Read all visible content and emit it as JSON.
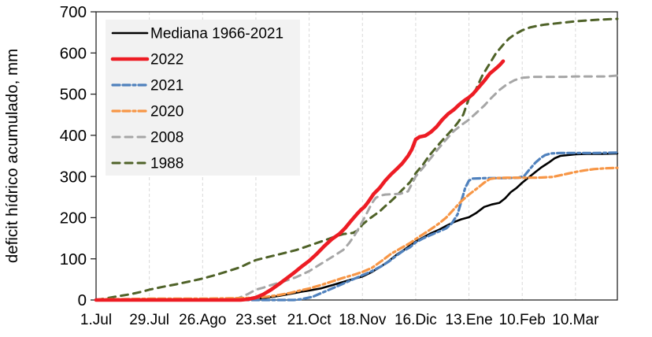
{
  "chart_data": {
    "type": "line",
    "title": "",
    "xlabel": "",
    "ylabel": "deficit hídrico acumulado, mm",
    "ylim": [
      0,
      700
    ],
    "xlim_days": [
      0,
      274
    ],
    "y_ticks": [
      0,
      100,
      200,
      300,
      400,
      500,
      600,
      700
    ],
    "x_ticks": [
      {
        "day": 0,
        "label": "1.Jul"
      },
      {
        "day": 28,
        "label": "29.Jul"
      },
      {
        "day": 56,
        "label": "26.Ago"
      },
      {
        "day": 84,
        "label": "23.set"
      },
      {
        "day": 112,
        "label": "21.Oct"
      },
      {
        "day": 140,
        "label": "18.Nov"
      },
      {
        "day": 168,
        "label": "16.Dic"
      },
      {
        "day": 196,
        "label": "13.Ene"
      },
      {
        "day": 224,
        "label": "10.Feb"
      },
      {
        "day": 252,
        "label": "10.Mar"
      }
    ],
    "grid": "vertical-dashed",
    "legend_position": "top-left",
    "colors": {
      "gridline": "#d9d9d9",
      "frame": "#262626",
      "legend_bg": "#f2f2f2"
    },
    "series": [
      {
        "name": "Mediana 1966-2021",
        "color": "#000000",
        "style": "solid",
        "width": 2.6,
        "points": [
          [
            0,
            0
          ],
          [
            56,
            0
          ],
          [
            70,
            0
          ],
          [
            78,
            1
          ],
          [
            84,
            3
          ],
          [
            90,
            6
          ],
          [
            96,
            10
          ],
          [
            102,
            15
          ],
          [
            108,
            20
          ],
          [
            112,
            23
          ],
          [
            118,
            28
          ],
          [
            124,
            36
          ],
          [
            130,
            44
          ],
          [
            136,
            52
          ],
          [
            140,
            57
          ],
          [
            145,
            68
          ],
          [
            150,
            82
          ],
          [
            154,
            95
          ],
          [
            158,
            110
          ],
          [
            162,
            122
          ],
          [
            165,
            132
          ],
          [
            168,
            142
          ],
          [
            172,
            152
          ],
          [
            176,
            162
          ],
          [
            180,
            170
          ],
          [
            184,
            180
          ],
          [
            188,
            189
          ],
          [
            192,
            196
          ],
          [
            196,
            201
          ],
          [
            200,
            212
          ],
          [
            204,
            226
          ],
          [
            208,
            232
          ],
          [
            212,
            236
          ],
          [
            215,
            247
          ],
          [
            218,
            262
          ],
          [
            221,
            272
          ],
          [
            224,
            285
          ],
          [
            228,
            300
          ],
          [
            231,
            311
          ],
          [
            234,
            322
          ],
          [
            238,
            334
          ],
          [
            241,
            344
          ],
          [
            244,
            350
          ],
          [
            248,
            352
          ],
          [
            252,
            354
          ],
          [
            258,
            355
          ],
          [
            266,
            355
          ],
          [
            274,
            356
          ]
        ]
      },
      {
        "name": "2022",
        "color": "#ed1c24",
        "style": "solid",
        "width": 4.6,
        "points": [
          [
            0,
            0
          ],
          [
            40,
            0
          ],
          [
            70,
            0
          ],
          [
            76,
            0
          ],
          [
            80,
            2
          ],
          [
            84,
            6
          ],
          [
            88,
            14
          ],
          [
            92,
            25
          ],
          [
            96,
            38
          ],
          [
            100,
            52
          ],
          [
            104,
            66
          ],
          [
            108,
            81
          ],
          [
            112,
            95
          ],
          [
            116,
            112
          ],
          [
            120,
            131
          ],
          [
            124,
            148
          ],
          [
            128,
            161
          ],
          [
            131,
            175
          ],
          [
            134,
            192
          ],
          [
            137,
            208
          ],
          [
            139,
            218
          ],
          [
            141,
            226
          ],
          [
            143,
            238
          ],
          [
            146,
            258
          ],
          [
            149,
            272
          ],
          [
            152,
            290
          ],
          [
            155,
            305
          ],
          [
            158,
            318
          ],
          [
            161,
            332
          ],
          [
            164,
            350
          ],
          [
            166,
            366
          ],
          [
            168,
            390
          ],
          [
            170,
            396
          ],
          [
            173,
            399
          ],
          [
            176,
            408
          ],
          [
            179,
            421
          ],
          [
            182,
            438
          ],
          [
            185,
            452
          ],
          [
            188,
            462
          ],
          [
            191,
            475
          ],
          [
            194,
            486
          ],
          [
            196,
            492
          ],
          [
            198,
            500
          ],
          [
            201,
            516
          ],
          [
            204,
            532
          ],
          [
            207,
            550
          ],
          [
            210,
            562
          ],
          [
            212,
            570
          ],
          [
            214,
            580
          ]
        ]
      },
      {
        "name": "2021",
        "color": "#4f81bd",
        "style": "dash-dot",
        "width": 3.2,
        "points": [
          [
            0,
            0
          ],
          [
            100,
            0
          ],
          [
            104,
            0
          ],
          [
            108,
            2
          ],
          [
            114,
            8
          ],
          [
            119,
            18
          ],
          [
            124,
            28
          ],
          [
            129,
            38
          ],
          [
            134,
            48
          ],
          [
            140,
            60
          ],
          [
            145,
            70
          ],
          [
            150,
            82
          ],
          [
            154,
            94
          ],
          [
            158,
            108
          ],
          [
            161,
            118
          ],
          [
            165,
            128
          ],
          [
            168,
            140
          ],
          [
            172,
            150
          ],
          [
            176,
            158
          ],
          [
            180,
            166
          ],
          [
            184,
            174
          ],
          [
            187,
            186
          ],
          [
            190,
            208
          ],
          [
            192,
            240
          ],
          [
            194,
            272
          ],
          [
            196,
            290
          ],
          [
            198,
            295
          ],
          [
            205,
            296
          ],
          [
            215,
            296
          ],
          [
            222,
            297
          ],
          [
            225,
            301
          ],
          [
            228,
            318
          ],
          [
            231,
            334
          ],
          [
            234,
            346
          ],
          [
            236,
            352
          ],
          [
            239,
            356
          ],
          [
            244,
            357
          ],
          [
            252,
            357
          ],
          [
            262,
            357
          ],
          [
            274,
            358
          ]
        ]
      },
      {
        "name": "2020",
        "color": "#f79646",
        "style": "dash-dot",
        "width": 3.2,
        "points": [
          [
            0,
            0
          ],
          [
            3,
            2
          ],
          [
            14,
            2
          ],
          [
            28,
            3
          ],
          [
            42,
            3
          ],
          [
            56,
            3
          ],
          [
            70,
            4
          ],
          [
            80,
            5
          ],
          [
            84,
            6
          ],
          [
            90,
            8
          ],
          [
            96,
            12
          ],
          [
            102,
            17
          ],
          [
            108,
            24
          ],
          [
            112,
            28
          ],
          [
            118,
            36
          ],
          [
            124,
            45
          ],
          [
            130,
            54
          ],
          [
            136,
            62
          ],
          [
            140,
            68
          ],
          [
            145,
            78
          ],
          [
            148,
            88
          ],
          [
            151,
            98
          ],
          [
            155,
            112
          ],
          [
            158,
            120
          ],
          [
            161,
            128
          ],
          [
            165,
            138
          ],
          [
            168,
            148
          ],
          [
            172,
            160
          ],
          [
            176,
            172
          ],
          [
            180,
            185
          ],
          [
            184,
            200
          ],
          [
            188,
            220
          ],
          [
            192,
            240
          ],
          [
            196,
            256
          ],
          [
            200,
            270
          ],
          [
            204,
            285
          ],
          [
            207,
            294
          ],
          [
            210,
            296
          ],
          [
            216,
            297
          ],
          [
            224,
            297
          ],
          [
            232,
            297
          ],
          [
            240,
            299
          ],
          [
            244,
            303
          ],
          [
            248,
            307
          ],
          [
            252,
            311
          ],
          [
            257,
            315
          ],
          [
            262,
            318
          ],
          [
            268,
            320
          ],
          [
            274,
            321
          ]
        ]
      },
      {
        "name": "2008",
        "color": "#a6a6a6",
        "style": "dash",
        "width": 3.0,
        "points": [
          [
            0,
            0
          ],
          [
            56,
            0
          ],
          [
            66,
            0
          ],
          [
            70,
            1
          ],
          [
            75,
            5
          ],
          [
            80,
            15
          ],
          [
            84,
            25
          ],
          [
            88,
            30
          ],
          [
            91,
            35
          ],
          [
            98,
            44
          ],
          [
            105,
            55
          ],
          [
            112,
            70
          ],
          [
            119,
            90
          ],
          [
            126,
            110
          ],
          [
            130,
            122
          ],
          [
            133,
            138
          ],
          [
            136,
            158
          ],
          [
            139,
            182
          ],
          [
            142,
            208
          ],
          [
            145,
            235
          ],
          [
            147,
            248
          ],
          [
            149,
            253
          ],
          [
            152,
            256
          ],
          [
            156,
            257
          ],
          [
            160,
            258
          ],
          [
            164,
            264
          ],
          [
            168,
            300
          ],
          [
            172,
            322
          ],
          [
            176,
            345
          ],
          [
            180,
            368
          ],
          [
            184,
            390
          ],
          [
            188,
            410
          ],
          [
            192,
            425
          ],
          [
            196,
            438
          ],
          [
            200,
            455
          ],
          [
            204,
            472
          ],
          [
            208,
            492
          ],
          [
            212,
            510
          ],
          [
            216,
            524
          ],
          [
            220,
            534
          ],
          [
            224,
            540
          ],
          [
            230,
            542
          ],
          [
            238,
            542
          ],
          [
            246,
            542
          ],
          [
            252,
            543
          ],
          [
            260,
            543
          ],
          [
            268,
            543
          ],
          [
            274,
            545
          ]
        ]
      },
      {
        "name": "1988",
        "color": "#4f6228",
        "style": "dash",
        "width": 3.0,
        "points": [
          [
            0,
            0
          ],
          [
            4,
            3
          ],
          [
            10,
            8
          ],
          [
            18,
            14
          ],
          [
            24,
            20
          ],
          [
            28,
            25
          ],
          [
            35,
            32
          ],
          [
            42,
            38
          ],
          [
            49,
            45
          ],
          [
            56,
            52
          ],
          [
            63,
            61
          ],
          [
            70,
            71
          ],
          [
            76,
            80
          ],
          [
            80,
            89
          ],
          [
            84,
            97
          ],
          [
            91,
            105
          ],
          [
            98,
            113
          ],
          [
            105,
            121
          ],
          [
            112,
            132
          ],
          [
            117,
            140
          ],
          [
            122,
            148
          ],
          [
            126,
            155
          ],
          [
            130,
            160
          ],
          [
            135,
            163
          ],
          [
            138,
            170
          ],
          [
            140,
            183
          ],
          [
            143,
            195
          ],
          [
            146,
            205
          ],
          [
            149,
            215
          ],
          [
            152,
            228
          ],
          [
            155,
            240
          ],
          [
            158,
            253
          ],
          [
            161,
            268
          ],
          [
            165,
            286
          ],
          [
            168,
            308
          ],
          [
            172,
            330
          ],
          [
            175,
            350
          ],
          [
            179,
            372
          ],
          [
            183,
            393
          ],
          [
            187,
            413
          ],
          [
            190,
            430
          ],
          [
            193,
            450
          ],
          [
            196,
            490
          ],
          [
            199,
            505
          ],
          [
            203,
            545
          ],
          [
            207,
            575
          ],
          [
            210,
            598
          ],
          [
            214,
            620
          ],
          [
            217,
            635
          ],
          [
            220,
            645
          ],
          [
            224,
            655
          ],
          [
            228,
            662
          ],
          [
            232,
            666
          ],
          [
            236,
            669
          ],
          [
            240,
            671
          ],
          [
            244,
            673
          ],
          [
            248,
            675
          ],
          [
            252,
            677
          ],
          [
            258,
            679
          ],
          [
            265,
            681
          ],
          [
            274,
            683
          ]
        ]
      }
    ]
  }
}
